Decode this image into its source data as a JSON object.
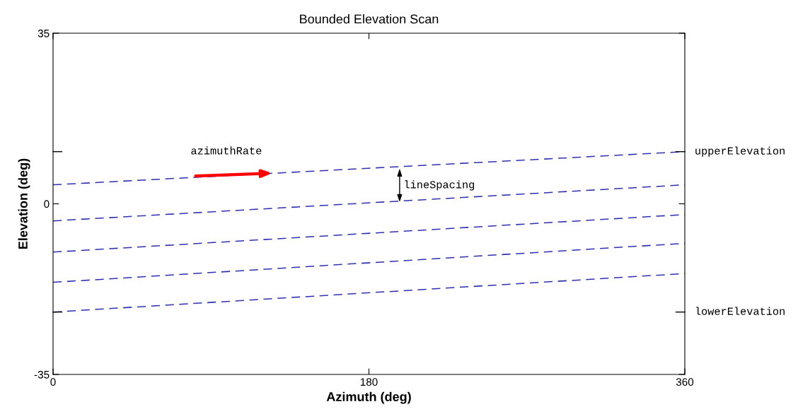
{
  "chart_data": {
    "type": "line",
    "title": "Bounded Elevation Scan",
    "xlabel": "Azimuth (deg)",
    "ylabel": "Elevation (deg)",
    "xlim": [
      0,
      360
    ],
    "xticks": [
      0,
      180,
      360
    ],
    "ylim": [
      -35,
      35
    ],
    "yticks": [
      35,
      0,
      -35
    ],
    "line_style": "dashed",
    "marker": "none",
    "grid": false,
    "x": [
      0,
      360
    ],
    "series": [
      {
        "color": "#3030b0",
        "values": [
          3.9,
          10.7
        ]
      },
      {
        "color": "#3030b0",
        "values": [
          -3.5,
          3.9
        ]
      },
      {
        "color": "#3030b0",
        "values": [
          -9.9,
          -2.2
        ]
      },
      {
        "color": "#3030b0",
        "values": [
          -16.1,
          -8.1
        ]
      },
      {
        "color": "#3030b0",
        "values": [
          -22.2,
          -14.3
        ]
      }
    ],
    "annotations": [
      {
        "text": "azimuthRate",
        "x": 126,
        "y": 6.3
      },
      {
        "text": "lineSpacing",
        "x": 197.5,
        "y": 7.6
      }
    ],
    "ref_lines": [
      {
        "axis": "y",
        "value": 10.7,
        "label": "upperElevation",
        "color": "#000000"
      },
      {
        "axis": "y",
        "value": -22.2,
        "label": "lowerElevation",
        "color": "#000000"
      }
    ]
  }
}
